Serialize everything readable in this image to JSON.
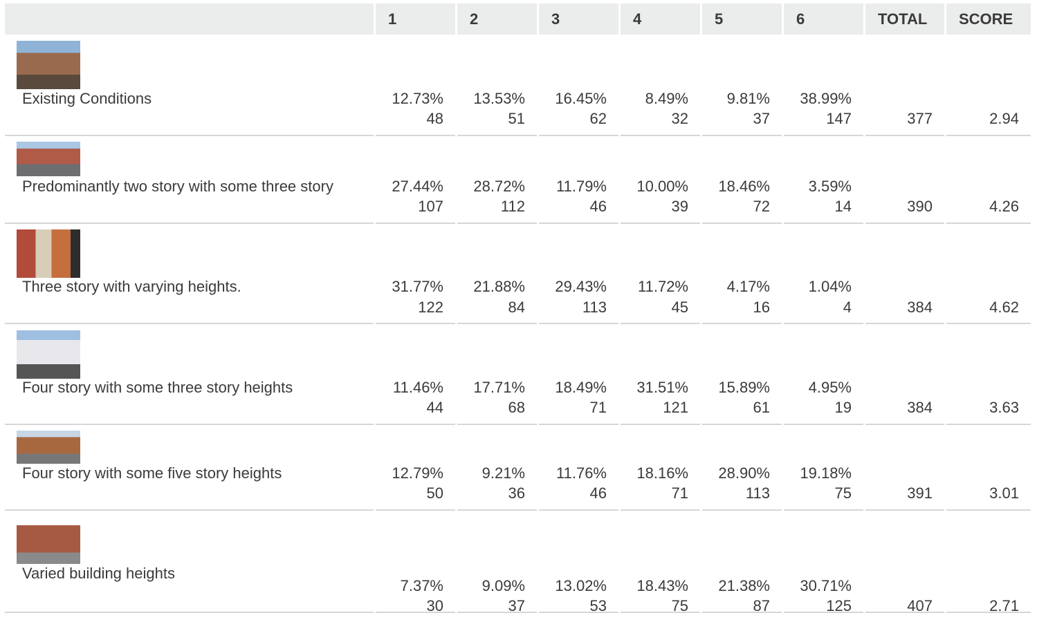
{
  "table": {
    "columns": [
      "1",
      "2",
      "3",
      "4",
      "5",
      "6",
      "TOTAL",
      "SCORE"
    ],
    "rows": [
      {
        "label": "Existing Conditions",
        "cells": [
          {
            "pct": "12.73%",
            "count": 48
          },
          {
            "pct": "13.53%",
            "count": 51
          },
          {
            "pct": "16.45%",
            "count": 62
          },
          {
            "pct": "8.49%",
            "count": 32
          },
          {
            "pct": "9.81%",
            "count": 37
          },
          {
            "pct": "38.99%",
            "count": 147
          }
        ],
        "total": 377,
        "score": 2.94
      },
      {
        "label": "Predominantly two story with some three story",
        "cells": [
          {
            "pct": "27.44%",
            "count": 107
          },
          {
            "pct": "28.72%",
            "count": 112
          },
          {
            "pct": "11.79%",
            "count": 46
          },
          {
            "pct": "10.00%",
            "count": 39
          },
          {
            "pct": "18.46%",
            "count": 72
          },
          {
            "pct": "3.59%",
            "count": 14
          }
        ],
        "total": 390,
        "score": 4.26
      },
      {
        "label": "Three story with varying heights.",
        "cells": [
          {
            "pct": "31.77%",
            "count": 122
          },
          {
            "pct": "21.88%",
            "count": 84
          },
          {
            "pct": "29.43%",
            "count": 113
          },
          {
            "pct": "11.72%",
            "count": 45
          },
          {
            "pct": "4.17%",
            "count": 16
          },
          {
            "pct": "1.04%",
            "count": 4
          }
        ],
        "total": 384,
        "score": 4.62
      },
      {
        "label": "Four story with some three story heights",
        "cells": [
          {
            "pct": "11.46%",
            "count": 44
          },
          {
            "pct": "17.71%",
            "count": 68
          },
          {
            "pct": "18.49%",
            "count": 71
          },
          {
            "pct": "31.51%",
            "count": 121
          },
          {
            "pct": "15.89%",
            "count": 61
          },
          {
            "pct": "4.95%",
            "count": 19
          }
        ],
        "total": 384,
        "score": 3.63
      },
      {
        "label": "Four story with some five story heights",
        "cells": [
          {
            "pct": "12.79%",
            "count": 50
          },
          {
            "pct": "9.21%",
            "count": 36
          },
          {
            "pct": "11.76%",
            "count": 46
          },
          {
            "pct": "18.16%",
            "count": 71
          },
          {
            "pct": "28.90%",
            "count": 113
          },
          {
            "pct": "19.18%",
            "count": 75
          }
        ],
        "total": 391,
        "score": 3.01
      },
      {
        "label": "Varied building heights",
        "cells": [
          {
            "pct": "7.37%",
            "count": 30
          },
          {
            "pct": "9.09%",
            "count": 37
          },
          {
            "pct": "13.02%",
            "count": 53
          },
          {
            "pct": "18.43%",
            "count": 75
          },
          {
            "pct": "21.38%",
            "count": 87
          },
          {
            "pct": "30.71%",
            "count": 125
          }
        ],
        "total": 407,
        "score": 2.71
      }
    ]
  }
}
